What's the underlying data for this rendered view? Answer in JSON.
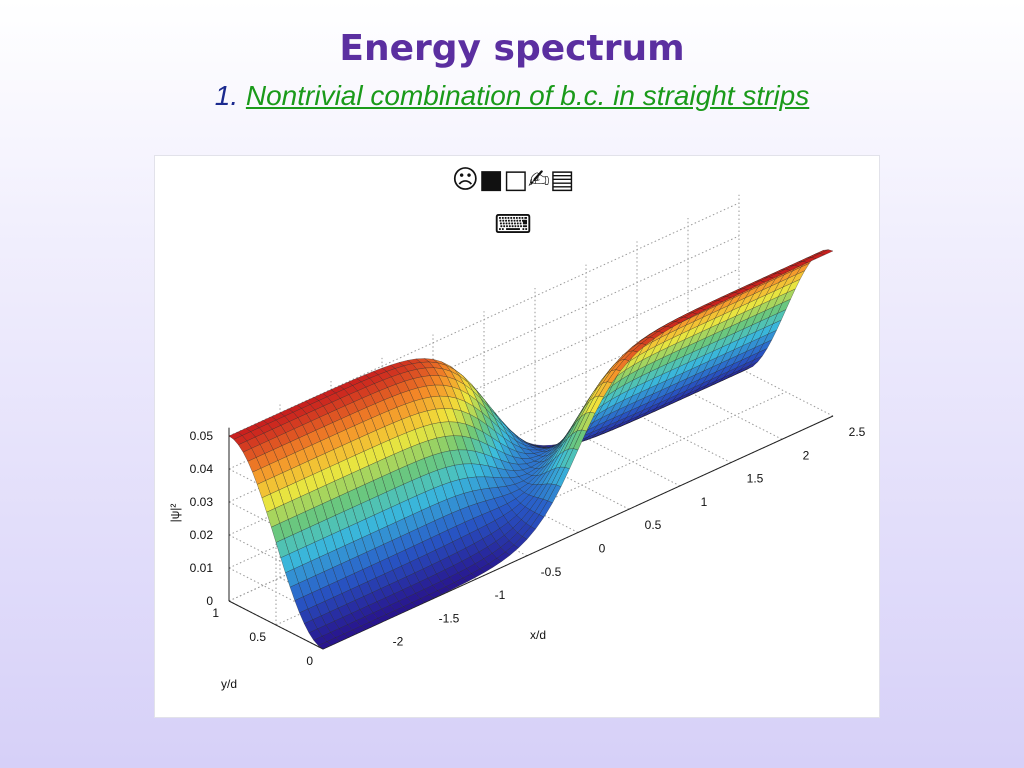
{
  "slide": {
    "title": "Energy spectrum",
    "subtitle_number": "1.",
    "subtitle": "Nontrivial combination of b.c. in straight strips",
    "figure": {
      "symbols_line1": "☹■□✍▤",
      "symbols_line2": "⌨",
      "z_label": "|ψ|²",
      "z_ticks": [
        0.05,
        0.04,
        0.03,
        0.02,
        0.01,
        0
      ],
      "x_label": "x/d",
      "x_ticks": [
        -2,
        -1.5,
        -1,
        -0.5,
        0,
        0.5,
        1,
        1.5,
        2,
        2.5
      ],
      "y_label": "y/d",
      "y_ticks": [
        1,
        0.5,
        0
      ]
    }
  }
}
